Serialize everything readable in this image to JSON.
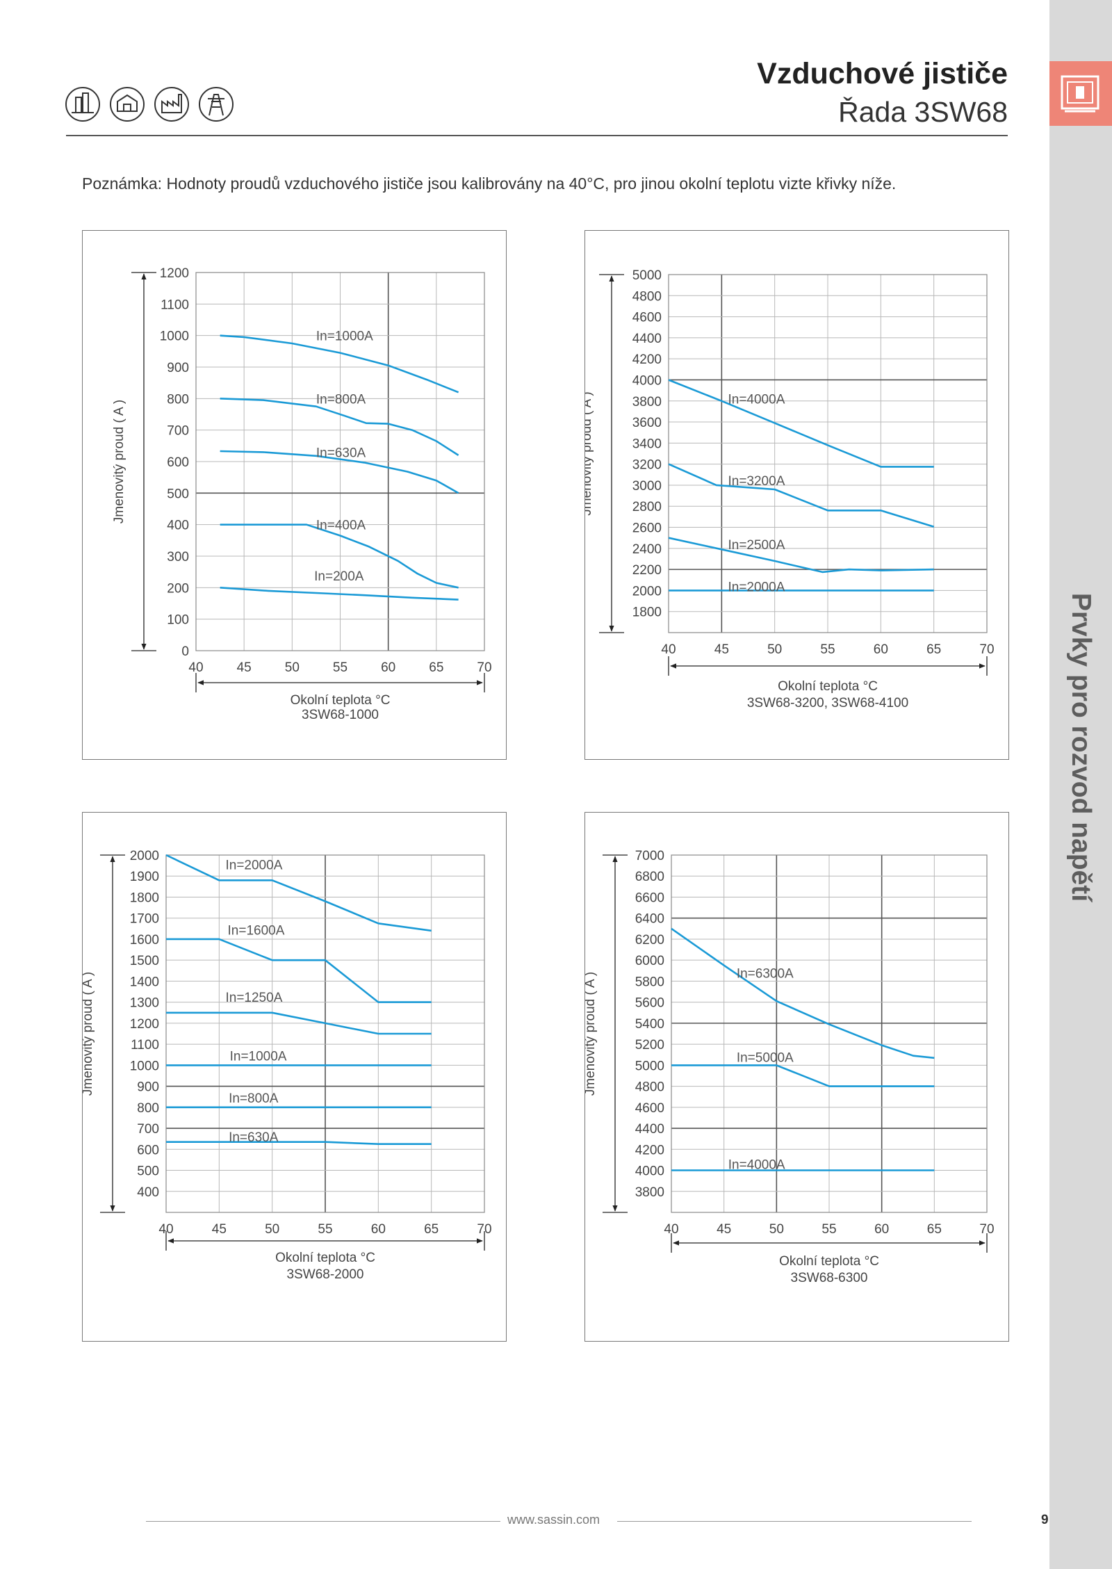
{
  "header": {
    "title": "Vzduchové jističe",
    "subtitle": "Řada 3SW68"
  },
  "icons": [
    "building-icon",
    "house-icon",
    "factory-icon",
    "power-tower-icon"
  ],
  "sidebar": {
    "label": "Prvky pro rozvod napětí",
    "tab_icon": "circuit-breaker-icon",
    "tab_color": "#ee8577"
  },
  "note": "Poznámka:  Hodnoty proudů vzduchového jističe jsou kalibrovány na 40°C, pro jinou okolní teplotu vizte křivky níže.",
  "colors": {
    "curve": "#1a9ad6",
    "grid": "#b8b8b8",
    "grid_major": "#555555"
  },
  "chart_data": [
    {
      "type": "line",
      "xlabel": "Okolní teplota °C",
      "caption": "3SW68-1000",
      "ylabel": "Jmenovitý proud ( A )",
      "xlim": [
        40,
        70
      ],
      "ylim": [
        0,
        1200
      ],
      "xticks": [
        40,
        45,
        50,
        55,
        60,
        65,
        70
      ],
      "yticks": [
        0,
        100,
        200,
        300,
        400,
        500,
        600,
        700,
        800,
        900,
        1000,
        1100,
        1200
      ],
      "major_x": [
        60
      ],
      "major_y": [
        500
      ],
      "series": [
        {
          "name": "In=1000A",
          "label_at": [
            52.5,
            1000
          ],
          "points": [
            [
              42.5,
              1000
            ],
            [
              45,
              995
            ],
            [
              50,
              975
            ],
            [
              55,
              945
            ],
            [
              60,
              905
            ],
            [
              64,
              860
            ],
            [
              67.3,
              820
            ]
          ]
        },
        {
          "name": "In=800A",
          "label_at": [
            52.5,
            800
          ],
          "points": [
            [
              42.5,
              800
            ],
            [
              47,
              795
            ],
            [
              52.5,
              775
            ],
            [
              55.5,
              745
            ],
            [
              57.7,
              722
            ],
            [
              60,
              720
            ],
            [
              62.5,
              700
            ],
            [
              65,
              665
            ],
            [
              67.3,
              620
            ]
          ]
        },
        {
          "name": "In=630A",
          "label_at": [
            52.5,
            630
          ],
          "points": [
            [
              42.5,
              633
            ],
            [
              47,
              630
            ],
            [
              52.5,
              618
            ],
            [
              57.5,
              597
            ],
            [
              62,
              568
            ],
            [
              65,
              540
            ],
            [
              67.3,
              500
            ]
          ]
        },
        {
          "name": "In=400A",
          "label_at": [
            52.5,
            400
          ],
          "points": [
            [
              42.5,
              400
            ],
            [
              45,
              400
            ],
            [
              51.5,
              400
            ],
            [
              55,
              365
            ],
            [
              58,
              330
            ],
            [
              61,
              285
            ],
            [
              63,
              245
            ],
            [
              65,
              215
            ],
            [
              67.3,
              200
            ]
          ]
        },
        {
          "name": "In=200A",
          "label_at": [
            52.3,
            238
          ],
          "points": [
            [
              42.5,
              200
            ],
            [
              47.5,
              190
            ],
            [
              52.5,
              183
            ],
            [
              57.5,
              176
            ],
            [
              62.5,
              168
            ],
            [
              67.3,
              162
            ]
          ]
        }
      ]
    },
    {
      "type": "line",
      "xlabel": "Okolní teplota °C",
      "caption": "3SW68-3200, 3SW68-4100",
      "ylabel": "Jmenovitý proud ( A )",
      "xlim": [
        40,
        70
      ],
      "ylim": [
        1600,
        5000
      ],
      "xticks": [
        40,
        45,
        50,
        55,
        60,
        65,
        70
      ],
      "yticks": [
        1800,
        2000,
        2200,
        2400,
        2600,
        2800,
        3000,
        3200,
        3400,
        3600,
        3800,
        4000,
        4200,
        4400,
        4600,
        4800,
        5000
      ],
      "major_x": [
        45
      ],
      "major_y": [
        4000,
        2200
      ],
      "series": [
        {
          "name": "In=4000A",
          "label_at": [
            45.6,
            3820
          ],
          "points": [
            [
              40,
              4000
            ],
            [
              45,
              3800
            ],
            [
              50,
              3590
            ],
            [
              55,
              3380
            ],
            [
              60,
              3175
            ],
            [
              65,
              3175
            ]
          ]
        },
        {
          "name": "In=3200A",
          "label_at": [
            45.6,
            3045
          ],
          "points": [
            [
              40,
              3200
            ],
            [
              44.5,
              3000
            ],
            [
              50,
              2960
            ],
            [
              55,
              2760
            ],
            [
              60,
              2760
            ],
            [
              65,
              2605
            ]
          ]
        },
        {
          "name": "In=2500A",
          "label_at": [
            45.6,
            2440
          ],
          "points": [
            [
              40,
              2500
            ],
            [
              45,
              2390
            ],
            [
              50,
              2280
            ],
            [
              54.5,
              2175
            ],
            [
              57,
              2200
            ],
            [
              60,
              2190
            ],
            [
              65,
              2200
            ]
          ]
        },
        {
          "name": "In=2000A",
          "label_at": [
            45.6,
            2040
          ],
          "points": [
            [
              40,
              2000
            ],
            [
              65,
              2000
            ]
          ]
        }
      ]
    },
    {
      "type": "line",
      "xlabel": "Okolní teplota °C",
      "caption": "3SW68-2000",
      "ylabel": "Jmenovitý proud ( A )",
      "xlim": [
        40,
        70
      ],
      "ylim": [
        300,
        2000
      ],
      "xticks": [
        40,
        45,
        50,
        55,
        60,
        65,
        70
      ],
      "yticks": [
        400,
        500,
        600,
        700,
        800,
        900,
        1000,
        1100,
        1200,
        1300,
        1400,
        1500,
        1600,
        1700,
        1800,
        1900,
        2000
      ],
      "major_x": [
        55
      ],
      "major_y": [
        900,
        700
      ],
      "series": [
        {
          "name": "In=2000A",
          "label_at": [
            45.6,
            1955
          ],
          "points": [
            [
              40,
              2000
            ],
            [
              45,
              1880
            ],
            [
              50,
              1880
            ],
            [
              55,
              1780
            ],
            [
              60,
              1675
            ],
            [
              65,
              1640
            ]
          ]
        },
        {
          "name": "In=1600A",
          "label_at": [
            45.8,
            1645
          ],
          "points": [
            [
              40,
              1600
            ],
            [
              45,
              1600
            ],
            [
              50,
              1500
            ],
            [
              55,
              1500
            ],
            [
              60,
              1300
            ],
            [
              65,
              1300
            ]
          ]
        },
        {
          "name": "In=1250A",
          "label_at": [
            45.6,
            1325
          ],
          "points": [
            [
              40,
              1250
            ],
            [
              50,
              1250
            ],
            [
              55,
              1200
            ],
            [
              60,
              1150
            ],
            [
              65,
              1150
            ]
          ]
        },
        {
          "name": "In=1000A",
          "label_at": [
            46,
            1045
          ],
          "points": [
            [
              40,
              1000
            ],
            [
              65,
              1000
            ]
          ]
        },
        {
          "name": "In=800A",
          "label_at": [
            45.9,
            845
          ],
          "points": [
            [
              40,
              800
            ],
            [
              65,
              800
            ]
          ]
        },
        {
          "name": "In=630A",
          "label_at": [
            45.9,
            660
          ],
          "points": [
            [
              40,
              635
            ],
            [
              55,
              635
            ],
            [
              60,
              625
            ],
            [
              65,
              625
            ]
          ]
        }
      ]
    },
    {
      "type": "line",
      "xlabel": "Okolní teplota °C",
      "caption": "3SW68-6300",
      "ylabel": "Jmenovitý proud ( A )",
      "xlim": [
        40,
        70
      ],
      "ylim": [
        3600,
        7000
      ],
      "xticks": [
        40,
        45,
        50,
        55,
        60,
        65,
        70
      ],
      "yticks": [
        3800,
        4000,
        4200,
        4400,
        4600,
        4800,
        5000,
        5200,
        5400,
        5600,
        5800,
        6000,
        6200,
        6400,
        6600,
        6800,
        7000
      ],
      "major_x": [
        50,
        60
      ],
      "major_y": [
        6400,
        5400,
        4400
      ],
      "series": [
        {
          "name": "In=6300A",
          "label_at": [
            46.2,
            5880
          ],
          "points": [
            [
              40,
              6300
            ],
            [
              45,
              5950
            ],
            [
              50,
              5610
            ],
            [
              55,
              5390
            ],
            [
              60,
              5190
            ],
            [
              63,
              5090
            ],
            [
              65,
              5070
            ]
          ]
        },
        {
          "name": "In=5000A",
          "label_at": [
            46.2,
            5080
          ],
          "points": [
            [
              40,
              5000
            ],
            [
              50,
              5000
            ],
            [
              55,
              4800
            ],
            [
              65,
              4800
            ]
          ]
        },
        {
          "name": "In=4000A",
          "label_at": [
            45.4,
            4060
          ],
          "points": [
            [
              40,
              4000
            ],
            [
              65,
              4000
            ]
          ]
        }
      ]
    }
  ],
  "footer": {
    "url": "www.sassin.com",
    "page": "9"
  }
}
